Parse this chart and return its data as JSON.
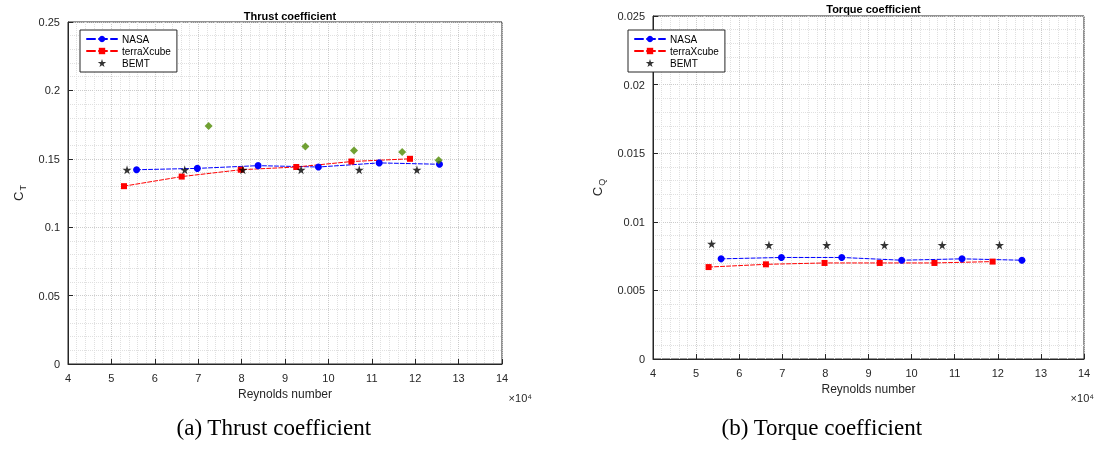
{
  "chart_data": [
    {
      "type": "line",
      "title": "Thrust coefficient",
      "xlabel": "Reynolds number",
      "ylabel": "C$_{T}$",
      "annotations": [
        "×10⁴",
        "(a) Thrust coefficient"
      ],
      "xlim": [
        4,
        14
      ],
      "xticks": [
        4,
        5,
        6,
        7,
        8,
        9,
        10,
        11,
        12,
        13,
        14
      ],
      "ylim": [
        0,
        0.25
      ],
      "yticks": [
        0,
        0.05,
        0.1,
        0.15,
        0.2,
        0.25
      ],
      "grid": true,
      "legend": "top left",
      "series": [
        {
          "name": "NASA",
          "marker": "circle",
          "line_style": "dashed",
          "color": "#0000ff",
          "x": [
            5.58,
            6.98,
            8.38,
            9.77,
            11.17,
            12.56
          ],
          "values": [
            0.142,
            0.143,
            0.145,
            0.144,
            0.147,
            0.146
          ]
        },
        {
          "name": "terraXcube",
          "marker": "square",
          "line_style": "dashed",
          "color": "#ff0000",
          "x": [
            5.29,
            6.62,
            7.98,
            9.26,
            10.53,
            11.88
          ],
          "values": [
            0.13,
            0.137,
            0.142,
            0.144,
            0.148,
            0.15
          ]
        },
        {
          "name": "BEMT",
          "type": "scatter",
          "marker": "star",
          "color": "#000000",
          "x": [
            5.36,
            6.69,
            8.03,
            9.37,
            10.71,
            12.04
          ],
          "values": [
            0.142,
            0.142,
            0.142,
            0.142,
            0.142,
            0.142
          ]
        },
        {
          "type": "scatter",
          "marker": "diamond",
          "color": "#4d8a00",
          "x": [
            7.24,
            9.47,
            10.59,
            11.7,
            12.54
          ],
          "values": [
            0.174,
            0.159,
            0.156,
            0.155,
            0.149
          ]
        }
      ]
    },
    {
      "type": "line",
      "title": "Torque coefficient",
      "xlabel": "Reynolds number",
      "ylabel": "C$_{Q}$",
      "annotations": [
        "×10⁴",
        "(b) Torque coefficient"
      ],
      "xlim": [
        4,
        14
      ],
      "xticks": [
        4,
        5,
        6,
        7,
        8,
        9,
        10,
        11,
        12,
        13,
        14
      ],
      "ylim": [
        0,
        0.025
      ],
      "yticks": [
        0,
        0.005,
        0.01,
        0.015,
        0.02,
        0.025
      ],
      "grid": true,
      "legend": "top left",
      "series": [
        {
          "name": "NASA",
          "marker": "circle",
          "line_style": "dashed",
          "color": "#0000ff",
          "x": [
            5.58,
            6.98,
            8.38,
            9.77,
            11.17,
            12.56
          ],
          "values": [
            0.0073,
            0.0074,
            0.0074,
            0.0072,
            0.0073,
            0.0072
          ]
        },
        {
          "name": "terraXcube",
          "marker": "square",
          "line_style": "dashed",
          "color": "#ff0000",
          "x": [
            5.29,
            6.62,
            7.98,
            9.26,
            10.53,
            11.88
          ],
          "values": [
            0.0067,
            0.0069,
            0.007,
            0.007,
            0.007,
            0.0071
          ]
        },
        {
          "name": "BEMT",
          "type": "scatter",
          "marker": "star",
          "color": "#000000",
          "x": [
            5.36,
            6.69,
            8.03,
            9.37,
            10.71,
            12.04
          ],
          "values": [
            0.0084,
            0.0083,
            0.0083,
            0.0083,
            0.0083,
            0.0083
          ]
        }
      ]
    }
  ]
}
